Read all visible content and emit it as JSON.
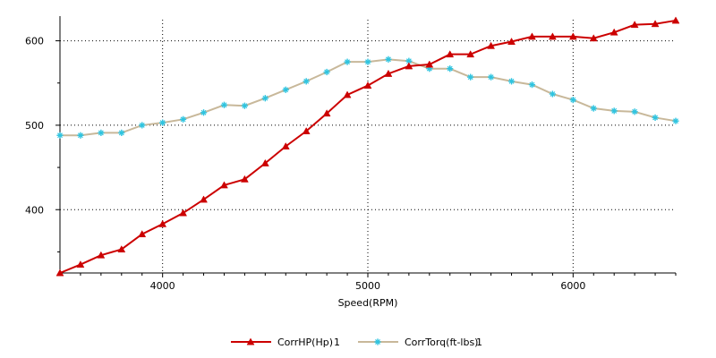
{
  "chart_data": {
    "type": "line",
    "xlabel": "Speed(RPM)",
    "ylabel": "",
    "xlim": [
      3500,
      6500
    ],
    "ylim": [
      325,
      625
    ],
    "x_ticks": [
      4000,
      5000,
      6000
    ],
    "y_ticks": [
      400,
      500,
      600
    ],
    "grid": true,
    "legend_position": "bottom",
    "x": [
      3500,
      3600,
      3700,
      3800,
      3900,
      4000,
      4100,
      4200,
      4300,
      4400,
      4500,
      4600,
      4700,
      4800,
      4900,
      5000,
      5100,
      5200,
      5300,
      5400,
      5500,
      5600,
      5700,
      5800,
      5900,
      6000,
      6100,
      6200,
      6300,
      6400,
      6500
    ],
    "series": [
      {
        "name": "CorrHP(Hp)",
        "run": "1",
        "color": "#cc0000",
        "marker": "triangle",
        "values": [
          325,
          335,
          346,
          353,
          371,
          383,
          396,
          412,
          429,
          436,
          455,
          475,
          493,
          514,
          536,
          547,
          561,
          570,
          572,
          584,
          584,
          594,
          599,
          605,
          605,
          605,
          603,
          610,
          619,
          620,
          624
        ]
      },
      {
        "name": "CorrTorq(ft-lbs)",
        "run": "1",
        "color": "#c8b89a",
        "marker_color": "#2ec4e0",
        "marker": "asterisk",
        "values": [
          488,
          488,
          491,
          491,
          500,
          503,
          507,
          515,
          524,
          523,
          532,
          542,
          552,
          563,
          575,
          575,
          578,
          576,
          567,
          567,
          557,
          557,
          552,
          548,
          537,
          530,
          520,
          517,
          516,
          509,
          505
        ]
      }
    ]
  }
}
